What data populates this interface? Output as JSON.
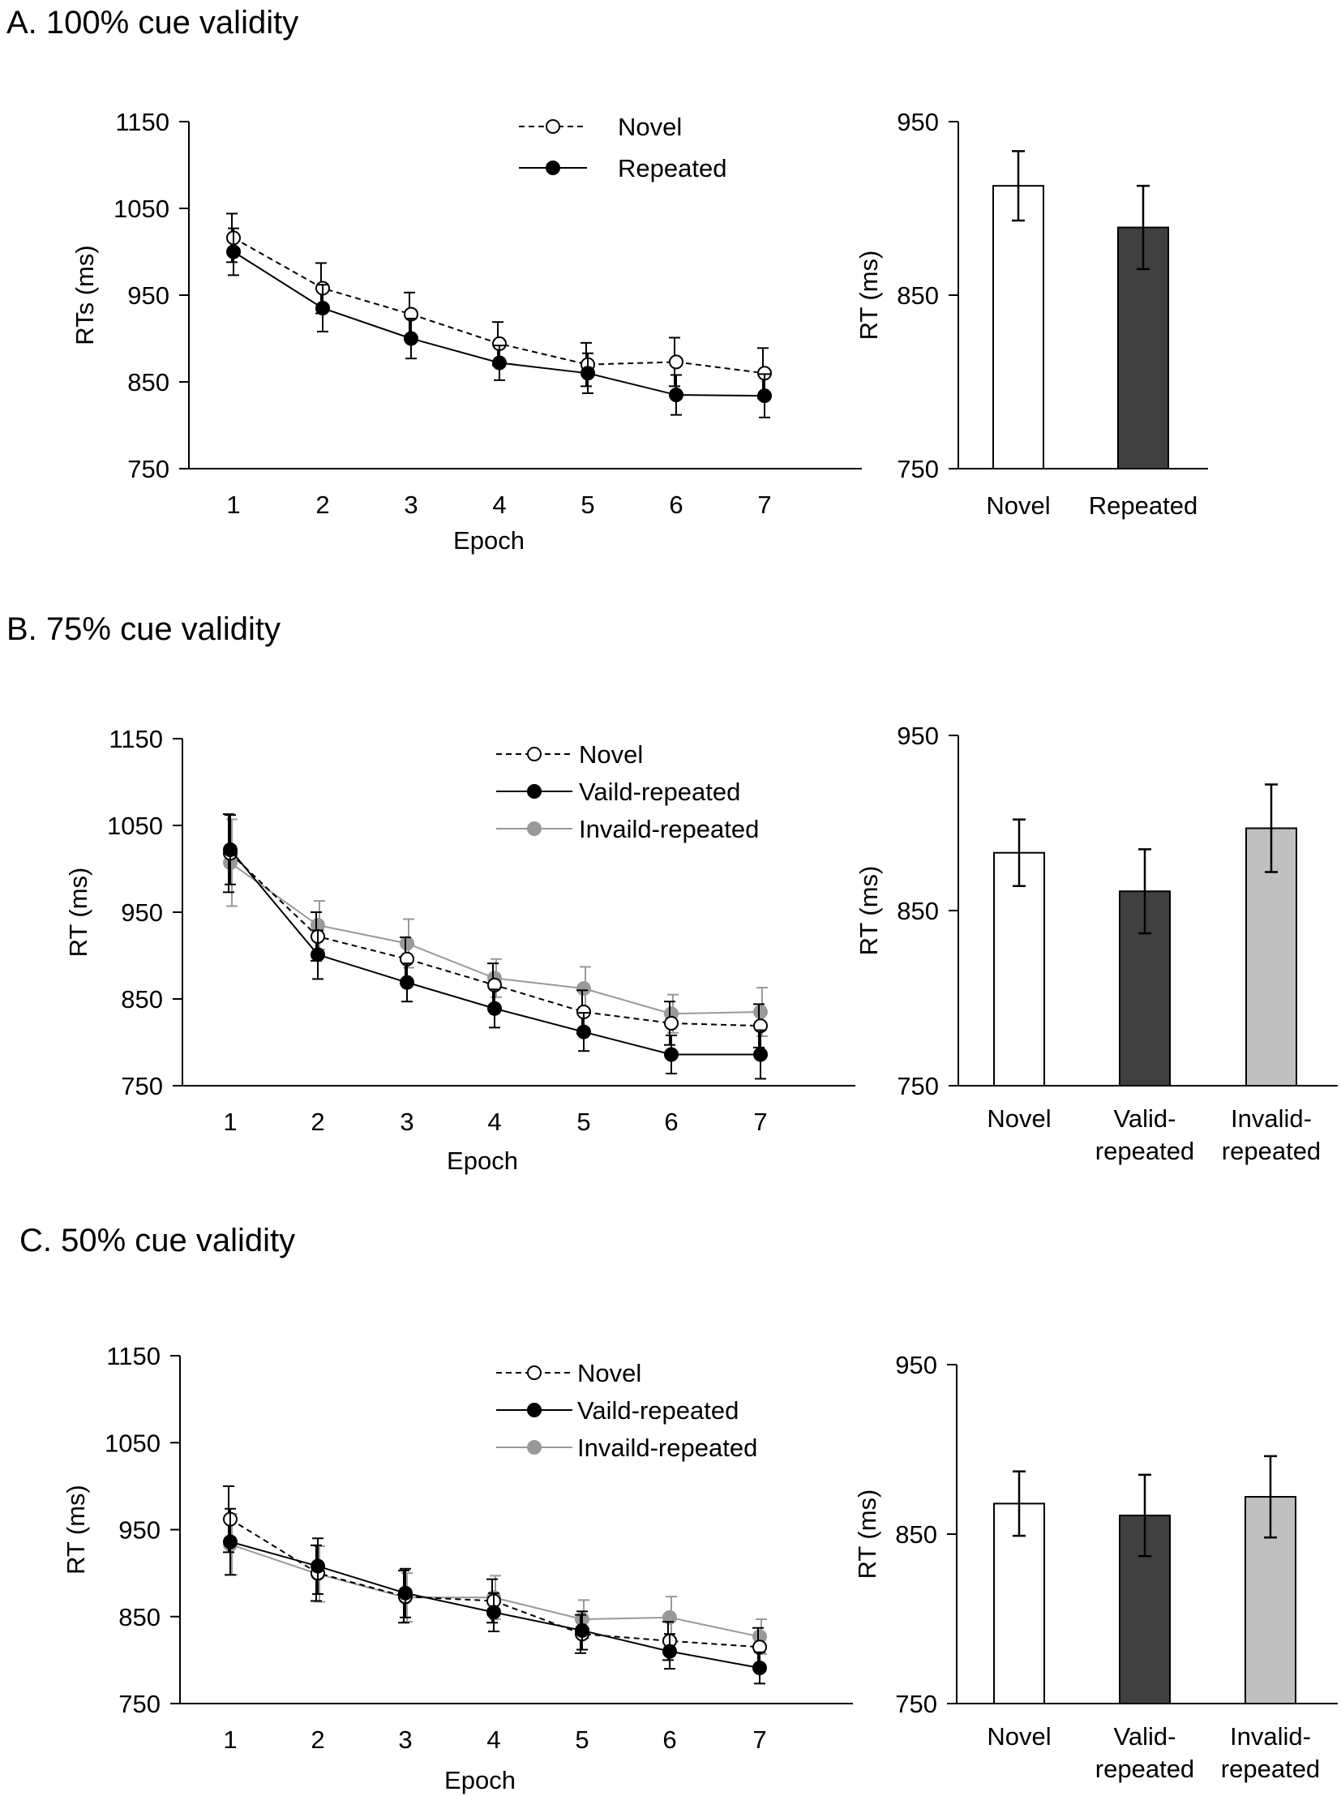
{
  "panels": [
    {
      "title": "A. 100% cue validity",
      "line": {
        "type": "line",
        "xlabel": "Epoch",
        "ylabel": "RTs (ms)",
        "ylim": [
          750,
          1150
        ],
        "yticks": [
          750,
          850,
          950,
          1050,
          1150
        ],
        "x": [
          1,
          2,
          3,
          4,
          5,
          6,
          7
        ],
        "series": [
          {
            "name": "Novel",
            "style": "dashed",
            "marker": "open",
            "color": "#000000",
            "values": [
              1016,
              958,
              928,
              894,
              870,
              873,
              860
            ],
            "errors": [
              28,
              29,
              25,
              25,
              25,
              28,
              29
            ]
          },
          {
            "name": "Repeated",
            "style": "solid",
            "marker": "filled",
            "color": "#000000",
            "values": [
              1000,
              935,
              900,
              872,
              860,
              835,
              834
            ],
            "errors": [
              27,
              27,
              23,
              20,
              23,
              23,
              25
            ]
          }
        ]
      },
      "bar": {
        "type": "bar",
        "ylabel": "RT (ms)",
        "ylim": [
          750,
          950
        ],
        "yticks": [
          750,
          850,
          950
        ],
        "categories": [
          [
            "Novel"
          ],
          [
            "Repeated"
          ]
        ],
        "values": [
          913,
          889
        ],
        "errors": [
          20,
          24
        ],
        "colors": [
          "#ffffff",
          "#404040"
        ]
      }
    },
    {
      "title": "B. 75% cue validity",
      "line": {
        "type": "line",
        "xlabel": "Epoch",
        "ylabel": "RT (ms)",
        "ylim": [
          750,
          1150
        ],
        "yticks": [
          750,
          850,
          950,
          1050,
          1150
        ],
        "x": [
          1,
          2,
          3,
          4,
          5,
          6,
          7
        ],
        "series": [
          {
            "name": "Novel",
            "style": "dashed",
            "marker": "open",
            "color": "#000000",
            "values": [
              1018,
              922,
              896,
              866,
              835,
              822,
              819
            ],
            "errors": [
              45,
              28,
              25,
              25,
              25,
              25,
              25
            ]
          },
          {
            "name": "Vaild-repeated",
            "style": "solid",
            "marker": "filled",
            "color": "#000000",
            "values": [
              1022,
              901,
              869,
              839,
              812,
              786,
              786
            ],
            "errors": [
              40,
              28,
              22,
              22,
              22,
              22,
              28
            ]
          },
          {
            "name": "Invaild-repeated",
            "style": "solid",
            "marker": "filled",
            "color": "#999999",
            "values": [
              1007,
              935,
              914,
              874,
              862,
              833,
              835
            ],
            "errors": [
              50,
              28,
              28,
              22,
              25,
              22,
              28
            ]
          }
        ]
      },
      "bar": {
        "type": "bar",
        "ylabel": "RT (ms)",
        "ylim": [
          750,
          950
        ],
        "yticks": [
          750,
          850,
          950
        ],
        "categories": [
          [
            "Novel"
          ],
          [
            "Valid-",
            "repeated"
          ],
          [
            "Invalid-",
            "repeated"
          ]
        ],
        "values": [
          883,
          861,
          897
        ],
        "errors": [
          19,
          24,
          25
        ],
        "colors": [
          "#ffffff",
          "#404040",
          "#c0c0c0"
        ]
      }
    },
    {
      "title": "C. 50% cue validity",
      "line": {
        "type": "line",
        "xlabel": "Epoch",
        "ylabel": "RT (ms)",
        "ylim": [
          750,
          1150
        ],
        "yticks": [
          750,
          850,
          950,
          1050,
          1150
        ],
        "x": [
          1,
          2,
          3,
          4,
          5,
          6,
          7
        ],
        "series": [
          {
            "name": "Novel",
            "style": "dashed",
            "marker": "open",
            "color": "#000000",
            "values": [
              962,
              900,
              873,
              868,
              830,
              822,
              815
            ],
            "errors": [
              38,
              32,
              30,
              25,
              22,
              22,
              22
            ]
          },
          {
            "name": "Vaild-repeated",
            "style": "solid",
            "marker": "filled",
            "color": "#000000",
            "values": [
              936,
              908,
              877,
              855,
              834,
              810,
              791
            ],
            "errors": [
              38,
              32,
              28,
              22,
              22,
              20,
              18
            ]
          },
          {
            "name": "Invaild-repeated",
            "style": "solid",
            "marker": "filled",
            "color": "#999999",
            "values": [
              933,
              899,
              872,
              872,
              847,
              849,
              827
            ],
            "errors": [
              35,
              32,
              28,
              25,
              22,
              24,
              20
            ]
          }
        ]
      },
      "bar": {
        "type": "bar",
        "ylabel": "RT (ms)",
        "ylim": [
          750,
          950
        ],
        "yticks": [
          750,
          850,
          950
        ],
        "categories": [
          [
            "Novel"
          ],
          [
            "Valid-",
            "repeated"
          ],
          [
            "Invalid-",
            "repeated"
          ]
        ],
        "values": [
          868,
          861,
          872
        ],
        "errors": [
          19,
          24,
          24
        ],
        "colors": [
          "#ffffff",
          "#404040",
          "#c0c0c0"
        ]
      }
    }
  ]
}
